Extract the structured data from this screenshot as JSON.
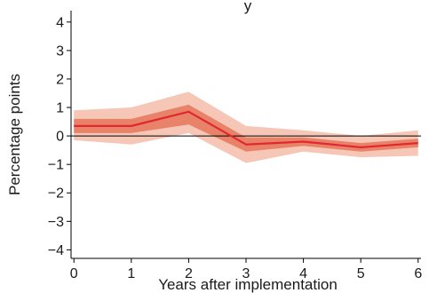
{
  "chart_data": {
    "type": "line",
    "title": "y",
    "xlabel": "Years after implementation",
    "ylabel": "Percentage points",
    "x": [
      0,
      1,
      2,
      3,
      4,
      5,
      6
    ],
    "xticks": [
      "0",
      "1",
      "2",
      "3",
      "4",
      "5",
      "6"
    ],
    "yticks": [
      "−4",
      "−3",
      "−2",
      "−1",
      "0",
      "1",
      "2",
      "3",
      "4"
    ],
    "ytick_values": [
      -4,
      -3,
      -2,
      -1,
      0,
      1,
      2,
      3,
      4
    ],
    "xlim": [
      -0.05,
      6.05
    ],
    "ylim": [
      -4.3,
      4.4
    ],
    "grid": false,
    "reference_line": 0,
    "series": [
      {
        "values": [
          0.35,
          0.35,
          0.85,
          -0.3,
          -0.2,
          -0.4,
          -0.25
        ],
        "inner_band": {
          "lower": [
            0.1,
            0.1,
            0.4,
            -0.55,
            -0.35,
            -0.55,
            -0.4
          ],
          "upper": [
            0.6,
            0.6,
            1.1,
            -0.05,
            -0.05,
            -0.25,
            -0.1
          ]
        },
        "outer_band": {
          "lower": [
            -0.15,
            -0.3,
            0.1,
            -0.95,
            -0.55,
            -0.75,
            -0.7
          ],
          "upper": [
            0.9,
            1.0,
            1.55,
            0.35,
            0.2,
            0.0,
            0.2
          ]
        }
      }
    ],
    "colors": {
      "line": "#e0282e",
      "inner_band": "#e8836a",
      "outer_band": "#f6c6b6",
      "axis": "#000000"
    }
  }
}
